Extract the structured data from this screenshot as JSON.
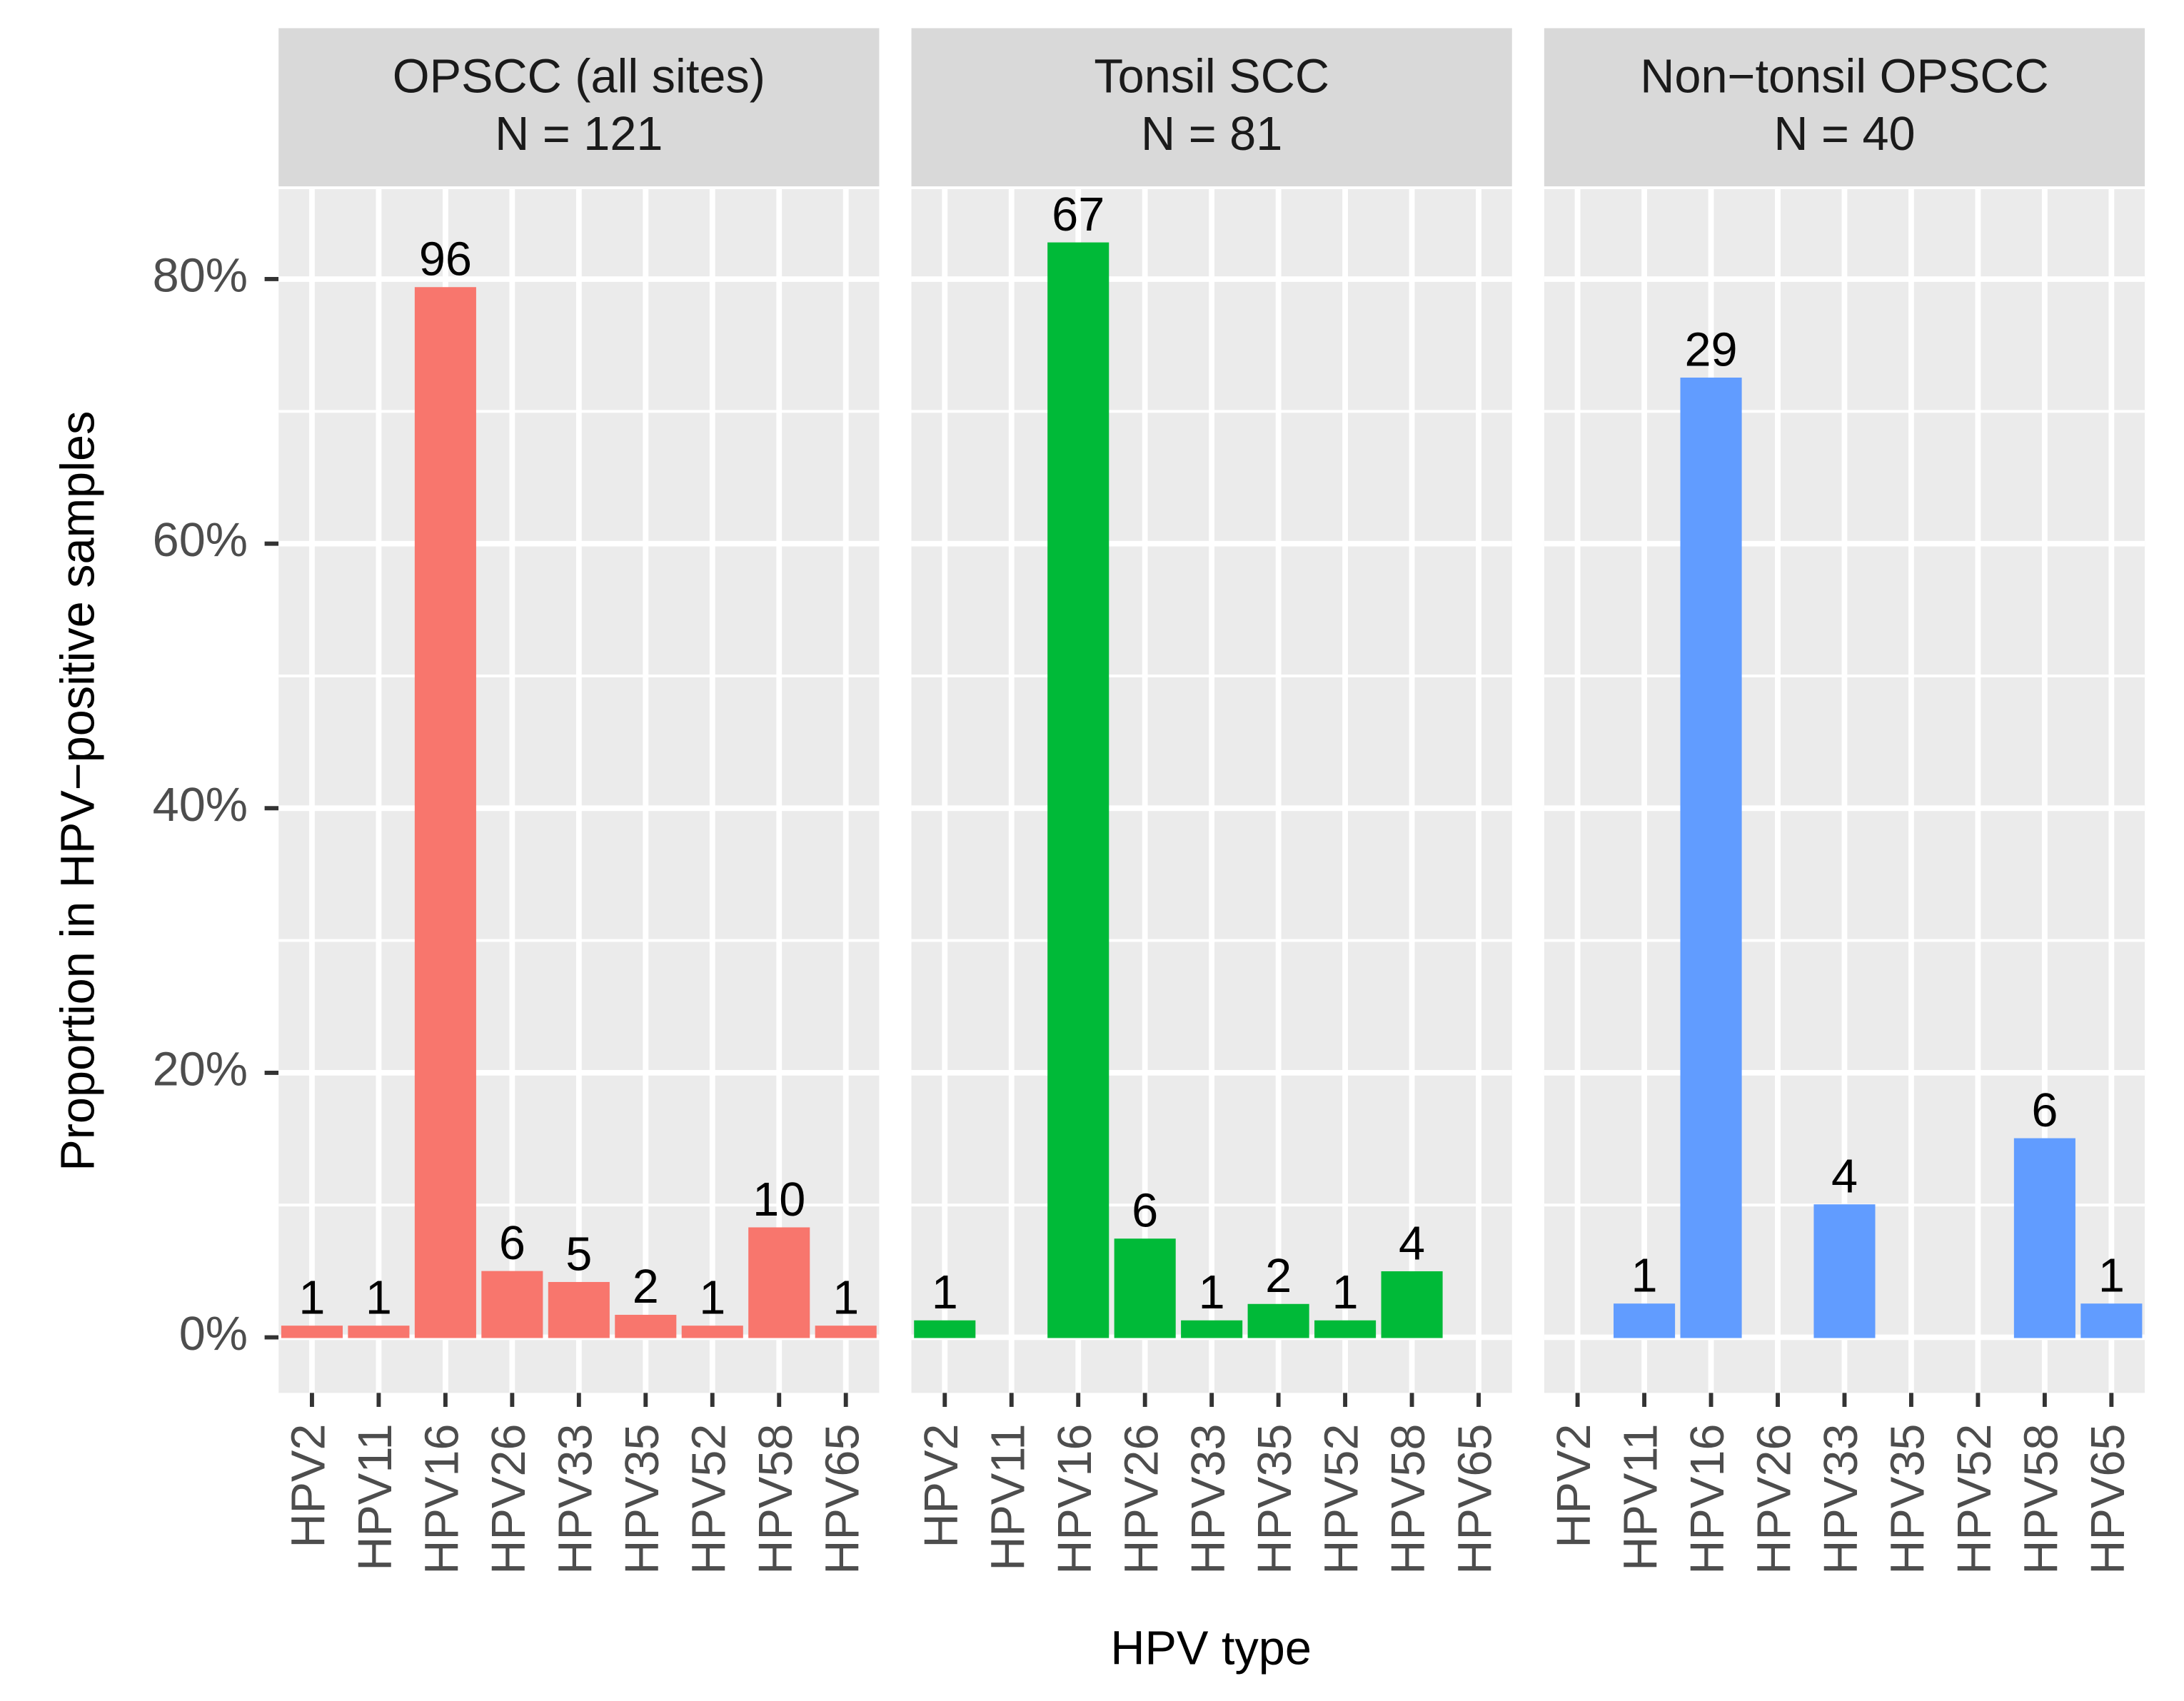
{
  "chart_data": {
    "type": "bar",
    "y_label": "Proportion in HPV−positive samples",
    "x_label": "HPV type",
    "ylim": [
      -4.2,
      86.8
    ],
    "yticks": [
      {
        "value": 0,
        "label": "0%"
      },
      {
        "value": 20,
        "label": "20%"
      },
      {
        "value": 40,
        "label": "40%"
      },
      {
        "value": 60,
        "label": "60%"
      },
      {
        "value": 80,
        "label": "80%"
      }
    ],
    "minor_yticks": [
      10,
      30,
      50,
      70
    ],
    "grid": true,
    "facets": [
      {
        "title": "OPSCC (all sites)",
        "subtitle": "N = 121",
        "color": "#F8766D",
        "categories": [
          "HPV2",
          "HPV11",
          "HPV16",
          "HPV26",
          "HPV33",
          "HPV35",
          "HPV52",
          "HPV58",
          "HPV65"
        ],
        "values": [
          0.83,
          0.83,
          79.34,
          4.96,
          4.13,
          1.65,
          0.83,
          8.26,
          0.83
        ],
        "counts": [
          1,
          1,
          96,
          6,
          5,
          2,
          1,
          10,
          1
        ]
      },
      {
        "title": "Tonsil SCC",
        "subtitle": "N = 81",
        "color": "#00BA38",
        "categories": [
          "HPV2",
          "HPV11",
          "HPV16",
          "HPV26",
          "HPV33",
          "HPV35",
          "HPV52",
          "HPV58",
          "HPV65"
        ],
        "values": [
          1.23,
          0,
          82.72,
          7.41,
          1.23,
          2.47,
          1.23,
          4.94,
          0
        ],
        "counts": [
          1,
          null,
          67,
          6,
          1,
          2,
          1,
          4,
          null
        ]
      },
      {
        "title": "Non−tonsil OPSCC",
        "subtitle": "N = 40",
        "color": "#619CFF",
        "categories": [
          "HPV2",
          "HPV11",
          "HPV16",
          "HPV26",
          "HPV33",
          "HPV35",
          "HPV52",
          "HPV58",
          "HPV65"
        ],
        "values": [
          0,
          2.5,
          72.5,
          0,
          10,
          0,
          0,
          15,
          2.5
        ],
        "counts": [
          null,
          1,
          29,
          null,
          4,
          null,
          null,
          6,
          1
        ]
      }
    ]
  }
}
